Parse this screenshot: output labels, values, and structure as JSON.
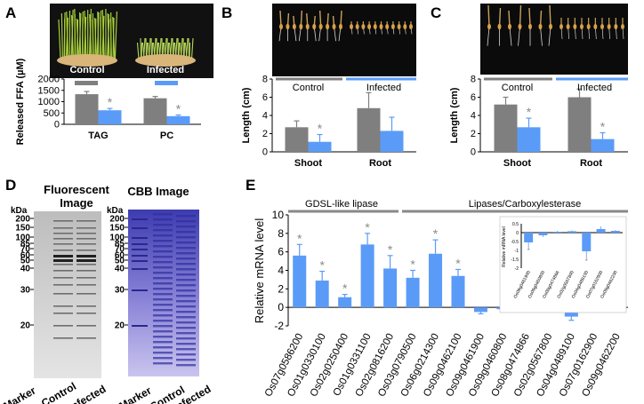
{
  "colors": {
    "control": "#7f7f7f",
    "treated": "#5b9bf8",
    "star": "#8a8a8a"
  },
  "panelA": {
    "label": "A",
    "photo_labels": {
      "control": "Control",
      "infected": "Infected"
    },
    "chart_data": {
      "type": "bar",
      "ylabel": "Released FFA (µM)",
      "ylim": [
        0,
        2000
      ],
      "yticks": [
        "0",
        "500",
        "1000",
        "1500",
        "2000"
      ],
      "categories": [
        "TAG",
        "PC"
      ],
      "series": [
        {
          "name": "Control",
          "values": [
            1330,
            1150
          ],
          "errors": [
            120,
            80
          ]
        },
        {
          "name": "Infected",
          "values": [
            620,
            360
          ],
          "errors": [
            80,
            50
          ]
        }
      ],
      "annotations": [
        "*",
        "*"
      ]
    }
  },
  "panelB": {
    "label": "B",
    "group_labels": {
      "control": "Control",
      "infected": "Infected"
    },
    "chart_data": {
      "type": "bar",
      "ylabel": "Length (cm)",
      "ylim": [
        0,
        8
      ],
      "yticks": [
        "0",
        "2",
        "4",
        "6",
        "8"
      ],
      "categories": [
        "Shoot",
        "Root"
      ],
      "series": [
        {
          "name": "Control",
          "values": [
            2.7,
            4.8
          ],
          "errors": [
            0.7,
            1.7
          ]
        },
        {
          "name": "Infected",
          "values": [
            1.1,
            2.3
          ],
          "errors": [
            0.8,
            1.5
          ]
        }
      ],
      "annotations": [
        "*"
      ]
    }
  },
  "panelC": {
    "label": "C",
    "group_labels": {
      "control": "Control",
      "infected": "Infected"
    },
    "chart_data": {
      "type": "bar",
      "ylabel": "Length (cm)",
      "ylim": [
        0,
        8
      ],
      "yticks": [
        "0",
        "2",
        "4",
        "6",
        "8"
      ],
      "categories": [
        "Shoot",
        "Root"
      ],
      "series": [
        {
          "name": "Control",
          "values": [
            5.2,
            6.0
          ],
          "errors": [
            0.8,
            0.9
          ]
        },
        {
          "name": "Infected",
          "values": [
            2.7,
            1.4
          ],
          "errors": [
            1.0,
            0.7
          ]
        }
      ],
      "annotations": [
        "*",
        "*"
      ]
    }
  },
  "panelD": {
    "label": "D",
    "fluor_title": "Fluorescent Image",
    "cbb_title": "CBB Image",
    "kda_label": "kDa",
    "markers": [
      "200",
      "150",
      "100",
      "85",
      "70",
      "60",
      "50",
      "40",
      "30",
      "20"
    ],
    "lanes": [
      "Marker",
      "Control",
      "Infected"
    ]
  },
  "panelE": {
    "label": "E",
    "group1": "GDSL-like lipase",
    "group2": "Lipases/Carboxylesterase",
    "chart_data": {
      "type": "bar",
      "ylabel": "Relative mRNA level",
      "ylim": [
        -2,
        10
      ],
      "yticks": [
        "-2",
        "0",
        "2",
        "4",
        "6",
        "8",
        "10"
      ],
      "categories": [
        "Os07g0586200",
        "Os01g0330100",
        "Os02g0250400",
        "Os01g0331100",
        "Os02g0816200",
        "Os03g0790500",
        "Os06g0214300",
        "Os09g0462100",
        "Os09g0461900",
        "Os09g0460800",
        "Os08g0474866",
        "Os02g0567800",
        "Os04g0489100",
        "Os07g0162900",
        "Os09g0462200"
      ],
      "values": [
        5.6,
        2.9,
        1.1,
        6.8,
        4.2,
        3.2,
        5.8,
        3.4,
        -0.5,
        -0.2,
        0.1,
        0.15,
        -1.0,
        0.2,
        0.1
      ],
      "errors": [
        1.2,
        1.0,
        0.3,
        1.2,
        1.4,
        0.8,
        1.5,
        0.7,
        0.2,
        0.1,
        0.1,
        0.1,
        0.4,
        0.2,
        0.1
      ],
      "annotations": [
        "*",
        "*",
        "*",
        "*",
        "*",
        "*",
        "*",
        "*"
      ]
    },
    "inset": {
      "type": "bar",
      "ylabel": "Relative mRNA level",
      "ylim": [
        -2,
        0.5
      ],
      "yticks": [
        "0.5",
        "0",
        "-0.5",
        "-1",
        "-1.5",
        "-2"
      ],
      "categories": [
        "Os09g0461900",
        "Os09g0460800",
        "Os08g0474866",
        "Os02g0567800",
        "Os04g0489100",
        "Os07g0162900",
        "Os09g0462200"
      ],
      "values": [
        -0.55,
        -0.15,
        0.05,
        0.08,
        -1.05,
        0.2,
        0.1
      ],
      "errors": [
        0.3,
        0.1,
        0.05,
        0.05,
        0.4,
        0.15,
        0.05
      ],
      "annotations": [
        "*",
        "*"
      ]
    }
  }
}
